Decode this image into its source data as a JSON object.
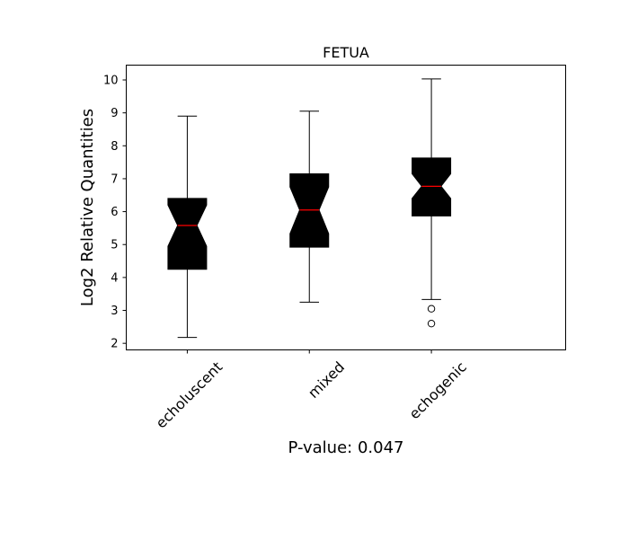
{
  "chart_data": {
    "type": "boxplot",
    "title": "FETUA",
    "xlabel": "P-value: 0.047",
    "ylabel": "Log2 Relative Quantities",
    "ylim": [
      1.8,
      10.45
    ],
    "yticks": [
      2,
      3,
      4,
      5,
      6,
      7,
      8,
      9,
      10
    ],
    "xlim": [
      0.5,
      4.1
    ],
    "notched": true,
    "grid": false,
    "categories": [
      "echoluscent",
      "mixed",
      "echogenic"
    ],
    "boxes": [
      {
        "category": "echoluscent",
        "whisker_low": 2.18,
        "q1": 4.25,
        "median": 5.58,
        "q3": 6.4,
        "whisker_high": 8.9,
        "notch_low": 4.95,
        "notch_high": 6.2,
        "outliers": []
      },
      {
        "category": "mixed",
        "whisker_low": 3.25,
        "q1": 4.92,
        "median": 6.05,
        "q3": 7.15,
        "whisker_high": 9.05,
        "notch_low": 5.33,
        "notch_high": 6.75,
        "outliers": []
      },
      {
        "category": "echogenic",
        "whisker_low": 3.33,
        "q1": 5.87,
        "median": 6.77,
        "q3": 7.63,
        "whisker_high": 10.03,
        "notch_low": 6.4,
        "notch_high": 7.15,
        "outliers": [
          3.05,
          2.6
        ]
      }
    ],
    "colors": {
      "box_fill": "#000000",
      "median": "#ff0000",
      "whisker": "#000000",
      "outlier_edge": "#000000"
    }
  }
}
